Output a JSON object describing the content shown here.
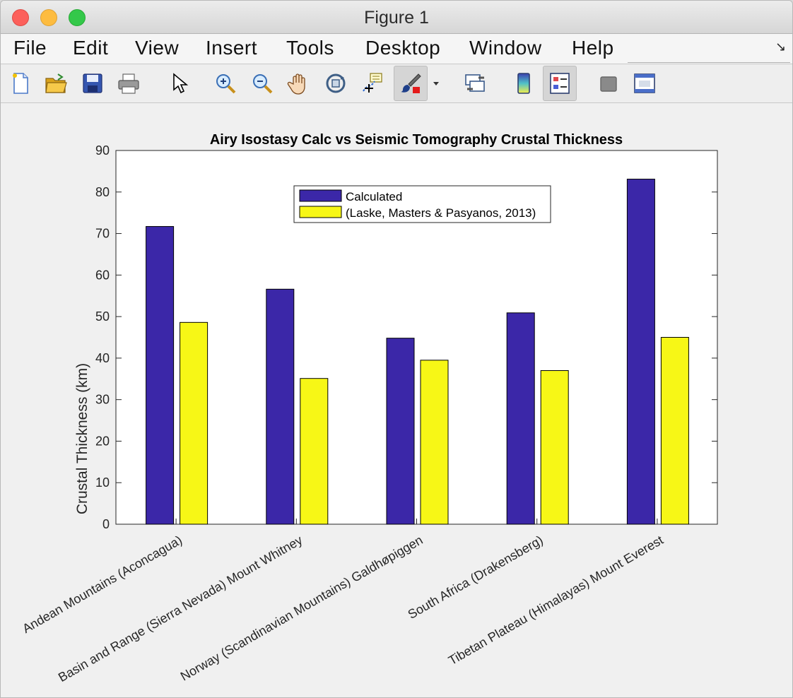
{
  "window": {
    "title": "Figure 1",
    "menu": [
      "File",
      "Edit",
      "View",
      "Insert",
      "Tools",
      "Desktop",
      "Window",
      "Help"
    ]
  },
  "toolbar": {
    "icons": [
      "new-figure-icon",
      "open-file-icon",
      "save-icon",
      "print-icon",
      "pointer-icon",
      "zoom-in-icon",
      "zoom-out-icon",
      "pan-hand-icon",
      "rotate-3d-icon",
      "data-cursor-icon",
      "brush-icon",
      "brush-dropdown-icon",
      "link-plot-icon",
      "colorbar-icon",
      "legend-icon",
      "hide-plot-tools-icon",
      "show-plot-tools-icon"
    ],
    "active": "legend-icon"
  },
  "colors": {
    "calculated": "#3b27a8",
    "reference": "#f7f716"
  },
  "chart_data": {
    "type": "bar",
    "title": "Airy Isostasy Calc vs Seismic Tomography Crustal Thickness",
    "xlabel": "",
    "ylabel": "Crustal Thickness (km)",
    "ylim": [
      0,
      90
    ],
    "yticks": [
      "0",
      "10",
      "20",
      "30",
      "40",
      "50",
      "60",
      "70",
      "80",
      "90"
    ],
    "categories": [
      "Andean Mountains (Aconcagua)",
      "Basin and Range (Sierra Nevada) Mount Whitney",
      "Norway (Scandinavian Mountains) Galdhøpiggen",
      "South Africa (Drakensberg)",
      "Tibetan Plateau (Himalayas) Mount Everest"
    ],
    "series": [
      {
        "name": "Calculated",
        "values": [
          71.7,
          56.6,
          44.8,
          50.9,
          83.1
        ]
      },
      {
        "name": "(Laske, Masters & Pasyanos, 2013)",
        "values": [
          48.6,
          35.1,
          39.5,
          37.0,
          45.0
        ]
      }
    ],
    "legend_position": "top-center",
    "grid": false
  }
}
